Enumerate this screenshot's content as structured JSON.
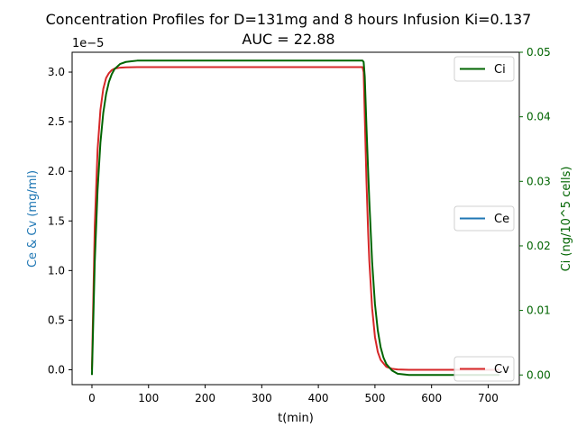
{
  "chart_data": {
    "type": "line",
    "title_line1": "Concentration Profiles for D=131mg and 8 hours Infusion Ki=0.137",
    "title_line2": "AUC = 22.88",
    "xlabel": "t(min)",
    "ylabel_left": "Ce & Cv (mg/ml)",
    "ylabel_right": "Ci (ng/10^5 cells)",
    "left_offset_label": "1e−5",
    "xlim": [
      -35,
      755
    ],
    "ylim_left": [
      -0.15,
      3.2
    ],
    "ylim_right": [
      -0.0015,
      0.05
    ],
    "x_ticks": [
      0,
      100,
      200,
      300,
      400,
      500,
      600,
      700
    ],
    "x_tick_labels": [
      "0",
      "100",
      "200",
      "300",
      "400",
      "500",
      "600",
      "700"
    ],
    "y_left_ticks": [
      0.0,
      0.5,
      1.0,
      1.5,
      2.0,
      2.5,
      3.0
    ],
    "y_left_tick_labels": [
      "0.0",
      "0.5",
      "1.0",
      "1.5",
      "2.0",
      "2.5",
      "3.0"
    ],
    "y_right_ticks": [
      0.0,
      0.01,
      0.02,
      0.03,
      0.04,
      0.05
    ],
    "y_right_tick_labels": [
      "0.00",
      "0.01",
      "0.02",
      "0.03",
      "0.04",
      "0.05"
    ],
    "series": [
      {
        "name": "Cv",
        "axis": "left",
        "color": "#d62728",
        "x": [
          0,
          5,
          10,
          15,
          20,
          25,
          30,
          35,
          40,
          50,
          60,
          80,
          100,
          200,
          300,
          400,
          478,
          480,
          482,
          485,
          488,
          490,
          495,
          500,
          505,
          510,
          520,
          530,
          540,
          560,
          600,
          700,
          720
        ],
        "y": [
          0.0,
          1.45,
          2.22,
          2.62,
          2.83,
          2.94,
          2.99,
          3.02,
          3.035,
          3.045,
          3.048,
          3.05,
          3.05,
          3.05,
          3.05,
          3.05,
          3.05,
          3.0,
          2.55,
          1.9,
          1.38,
          1.1,
          0.62,
          0.33,
          0.18,
          0.1,
          0.03,
          0.01,
          0.003,
          0.0,
          0.0,
          0.0,
          0.0
        ]
      },
      {
        "name": "Ci",
        "axis": "right",
        "color": "#006400",
        "x": [
          0,
          5,
          10,
          15,
          20,
          25,
          30,
          35,
          40,
          50,
          60,
          70,
          80,
          100,
          200,
          300,
          400,
          478,
          480,
          482,
          485,
          488,
          490,
          495,
          500,
          505,
          510,
          515,
          520,
          530,
          540,
          560,
          600,
          700,
          720
        ],
        "y": [
          0.0,
          0.0175,
          0.0287,
          0.036,
          0.0406,
          0.0435,
          0.0454,
          0.0466,
          0.0474,
          0.0482,
          0.0485,
          0.0486,
          0.0487,
          0.0487,
          0.0487,
          0.0487,
          0.0487,
          0.0487,
          0.0485,
          0.0462,
          0.0385,
          0.0315,
          0.027,
          0.0175,
          0.011,
          0.0069,
          0.0043,
          0.0027,
          0.0017,
          0.0007,
          0.0002,
          0.0,
          0.0,
          0.0,
          0.0
        ]
      },
      {
        "name": "Ce",
        "axis": "left",
        "color": "#1f77b4",
        "x": [],
        "y": []
      }
    ],
    "legends": [
      {
        "label": "Ci",
        "color": "#006400",
        "position": "top-right"
      },
      {
        "label": "Ce",
        "color": "#1f77b4",
        "position": "center-right"
      },
      {
        "label": "Cv",
        "color": "#d62728",
        "position": "bottom-right"
      }
    ],
    "colors": {
      "left_axis_label": "#1f77b4",
      "right_axis": "#006400",
      "axis": "#000000"
    },
    "grid": false
  }
}
